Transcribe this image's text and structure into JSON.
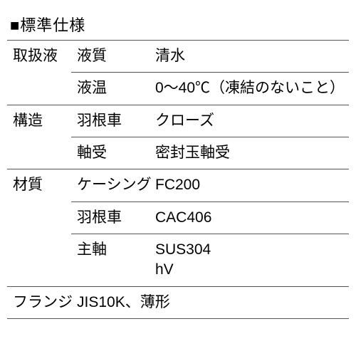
{
  "title": "■標準仕様",
  "table": {
    "rows": [
      {
        "cat": "取扱液",
        "sub": "液質",
        "val": "清水",
        "rowspan": 2
      },
      {
        "cat": "",
        "sub": "液温",
        "val": "0～40℃（凍結のないこと）"
      },
      {
        "cat": "構造",
        "sub": "羽根車",
        "val": "クローズ",
        "rowspan": 2
      },
      {
        "cat": "",
        "sub": "軸受",
        "val": "密封玉軸受"
      },
      {
        "cat": "材質",
        "sub": "ケーシング",
        "val": "FC200",
        "rowspan": 3
      },
      {
        "cat": "",
        "sub": "羽根車",
        "val": "CAC406"
      },
      {
        "cat": "",
        "sub": "主軸",
        "val": "SUS304\nhV"
      },
      {
        "cat": "フランジ",
        "sub": "",
        "val": "JIS10K、薄形",
        "single": true
      }
    ]
  },
  "style": {
    "border_color": "#555555",
    "background_color": "#ffffff",
    "text_color": "#000000",
    "title_fontsize": 22,
    "cell_fontsize": 21
  }
}
